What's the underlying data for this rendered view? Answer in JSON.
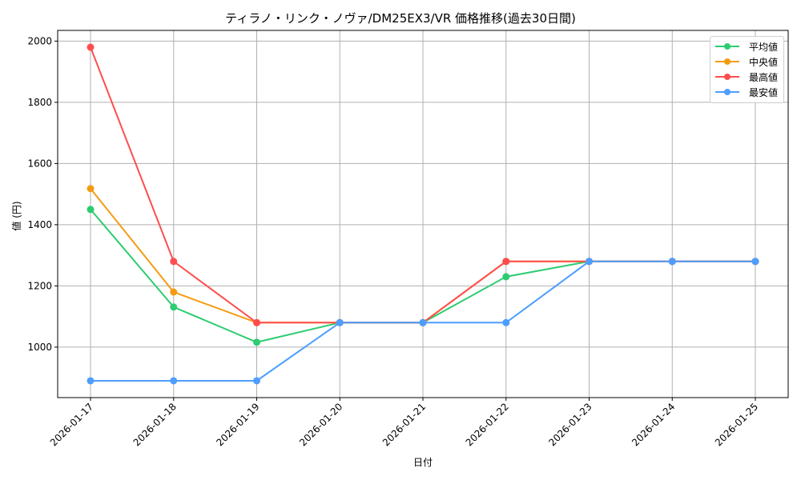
{
  "chart_data": {
    "type": "line",
    "title": "ティラノ・リンク・ノヴァ/DM25EX3/VR 価格推移(過去30日間)",
    "xlabel": "日付",
    "ylabel": "値 (円)",
    "categories": [
      "2026-01-17",
      "2026-01-18",
      "2026-01-19",
      "2026-01-20",
      "2026-01-21",
      "2026-01-22",
      "2026-01-23",
      "2026-01-24",
      "2026-01-25"
    ],
    "series": [
      {
        "name": "平均値",
        "color": "#2ecc71",
        "values": [
          1450,
          1131,
          1016,
          1080,
          1080,
          1230,
          1280,
          1280,
          1280
        ]
      },
      {
        "name": "中央値",
        "color": "#f39c12",
        "values": [
          1518,
          1180,
          1080,
          1080,
          1080,
          1280,
          1280,
          1280,
          1280
        ]
      },
      {
        "name": "最高値",
        "color": "#ff4d4d",
        "values": [
          1980,
          1280,
          1080,
          1080,
          1080,
          1280,
          1280,
          1280,
          1280
        ]
      },
      {
        "name": "最安値",
        "color": "#4d9eff",
        "values": [
          890,
          890,
          890,
          1080,
          1080,
          1080,
          1280,
          1280,
          1280
        ]
      }
    ],
    "yticks": [
      1000,
      1200,
      1400,
      1600,
      1800,
      2000
    ],
    "ylim": [
      835,
      2035
    ],
    "grid": true,
    "legend_position": "upper right"
  }
}
